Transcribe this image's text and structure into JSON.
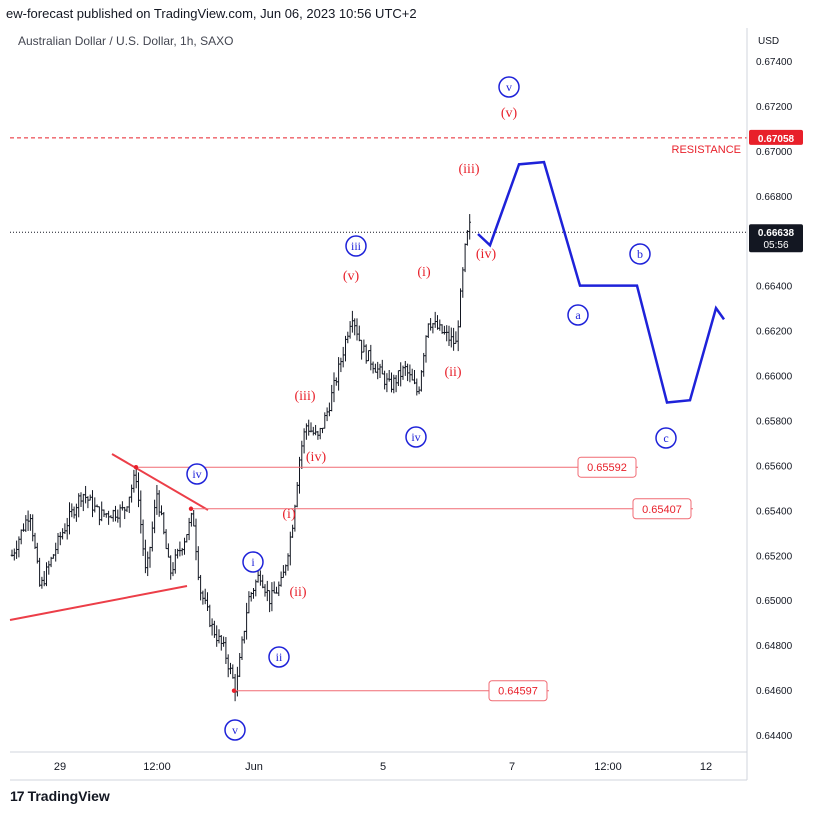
{
  "header": {
    "text": "ew-forecast published on TradingView.com, Jun 06, 2023 10:56 UTC+2"
  },
  "symbol": {
    "text": "Australian Dollar / U.S. Dollar, 1h, SAXO"
  },
  "brand": {
    "name": "TradingView",
    "icon": "tradingview-logo-icon"
  },
  "colors": {
    "wave_blue": "#1e22d9",
    "label_red": "#e8202a",
    "level_line": "#f06b74",
    "grid": "#e0e3eb",
    "candle": "#131722"
  },
  "chart_data": {
    "type": "candlestick",
    "currency": "USD",
    "ylim": [
      0.6436,
      0.675
    ],
    "y_ticks": [
      "0.67400",
      "0.67200",
      "0.67000",
      "0.66800",
      "0.66600",
      "0.66400",
      "0.66200",
      "0.66000",
      "0.65800",
      "0.65600",
      "0.65400",
      "0.65200",
      "0.65000",
      "0.64800",
      "0.64600",
      "0.64400"
    ],
    "x_ticks": [
      "29",
      "12:00",
      "Jun",
      "5",
      "7",
      "12:00",
      "12"
    ],
    "current_price": {
      "value": "0.66638",
      "countdown": "05:56"
    },
    "resistance": {
      "label": "RESISTANCE",
      "value": "0.67058"
    },
    "levels": [
      "0.65592",
      "0.65407",
      "0.64597"
    ],
    "wave_labels": {
      "blue": [
        "iv",
        "i",
        "ii",
        "v",
        "iii",
        "iv",
        "v",
        "a",
        "b",
        "c"
      ],
      "red": [
        "(i)",
        "(ii)",
        "(iii)",
        "(iv)",
        "(v)",
        "(i)",
        "(ii)",
        "(iii)",
        "(iv)",
        "(v)"
      ]
    },
    "projection": [
      0.6663,
      0.6658,
      0.6694,
      0.6695,
      0.664,
      0.664,
      0.6588,
      0.6589,
      0.663,
      0.6625
    ]
  }
}
